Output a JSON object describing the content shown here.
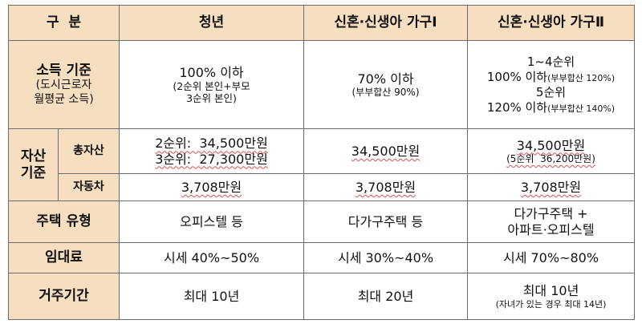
{
  "header": {
    "col0": "구  분",
    "col1": "청년",
    "col2": "신혼·신생아 가구Ⅰ",
    "col3": "신혼·신생아 가구Ⅱ"
  },
  "income": {
    "label": "소득 기준",
    "note_line1": "(도시근로자",
    "note_line2": "월평균 소득)",
    "youth_main": "100% 이하",
    "youth_note_line1": "(2순위 본인+부모",
    "youth_note_line2": "3순위 본인)",
    "newlywed1_main": "70% 이하",
    "newlywed1_note": "(부부합산 90%)",
    "newlywed2_rank_a": "1~4순위",
    "newlywed2_val_a": "100% 이하",
    "newlywed2_note_a": "(부부합산 120%)",
    "newlywed2_rank_b": "5순위",
    "newlywed2_val_b": "120% 이하",
    "newlywed2_note_b": "(부부합산 140%)"
  },
  "assets": {
    "label_line1": "자산",
    "label_line2": "기준",
    "total": {
      "label": "총자산",
      "youth_line1": "2순위:  34,500만원",
      "youth_line2": "3순위:  27,300만원",
      "newlywed1": "34,500만원",
      "newlywed2_main": "34,500만원",
      "newlywed2_note": "(5순위  36,200만원)"
    },
    "car": {
      "label": "자동차",
      "youth": "3,708만원",
      "newlywed1": "3,708만원",
      "newlywed2": "3,708만원"
    }
  },
  "housing": {
    "label": "주택 유형",
    "youth": "오피스텔 등",
    "newlywed1": "다가구주택 등",
    "newlywed2_line1": "다가구주택 +",
    "newlywed2_line2": "아파트·오피스텔"
  },
  "rent": {
    "label": "임대료",
    "youth": "시세 40%~50%",
    "newlywed1": "시세 30%~40%",
    "newlywed2": "시세 70%~80%"
  },
  "residence": {
    "label": "거주기간",
    "youth": "최대 10년",
    "newlywed1": "최대 20년",
    "newlywed2_main": "최대 10년",
    "newlywed2_note": "(자녀가 있는 경우 최대 14년)"
  }
}
